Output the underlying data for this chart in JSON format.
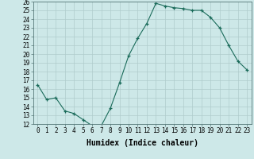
{
  "x": [
    0,
    1,
    2,
    3,
    4,
    5,
    6,
    7,
    8,
    9,
    10,
    11,
    12,
    13,
    14,
    15,
    16,
    17,
    18,
    19,
    20,
    21,
    22,
    23
  ],
  "y": [
    16.5,
    14.8,
    15.0,
    13.5,
    13.2,
    12.5,
    11.8,
    11.8,
    13.8,
    16.7,
    19.8,
    21.8,
    23.5,
    25.8,
    25.5,
    25.3,
    25.2,
    25.0,
    25.0,
    24.2,
    23.0,
    21.0,
    19.2,
    18.2
  ],
  "line_color": "#1a6b5a",
  "marker": "+",
  "marker_color": "#1a6b5a",
  "bg_color": "#cde8e8",
  "grid_color": "#b0cccc",
  "xlabel": "Humidex (Indice chaleur)",
  "ylim": [
    12,
    26
  ],
  "xlim": [
    -0.5,
    23.5
  ],
  "yticks": [
    12,
    13,
    14,
    15,
    16,
    17,
    18,
    19,
    20,
    21,
    22,
    23,
    24,
    25,
    26
  ],
  "xticks": [
    0,
    1,
    2,
    3,
    4,
    5,
    6,
    7,
    8,
    9,
    10,
    11,
    12,
    13,
    14,
    15,
    16,
    17,
    18,
    19,
    20,
    21,
    22,
    23
  ],
  "xtick_labels": [
    "0",
    "1",
    "2",
    "3",
    "4",
    "5",
    "6",
    "7",
    "8",
    "9",
    "10",
    "11",
    "12",
    "13",
    "14",
    "15",
    "16",
    "17",
    "18",
    "19",
    "20",
    "21",
    "22",
    "23"
  ],
  "axis_fontsize": 6.5,
  "tick_fontsize": 5.5,
  "xlabel_fontsize": 7
}
